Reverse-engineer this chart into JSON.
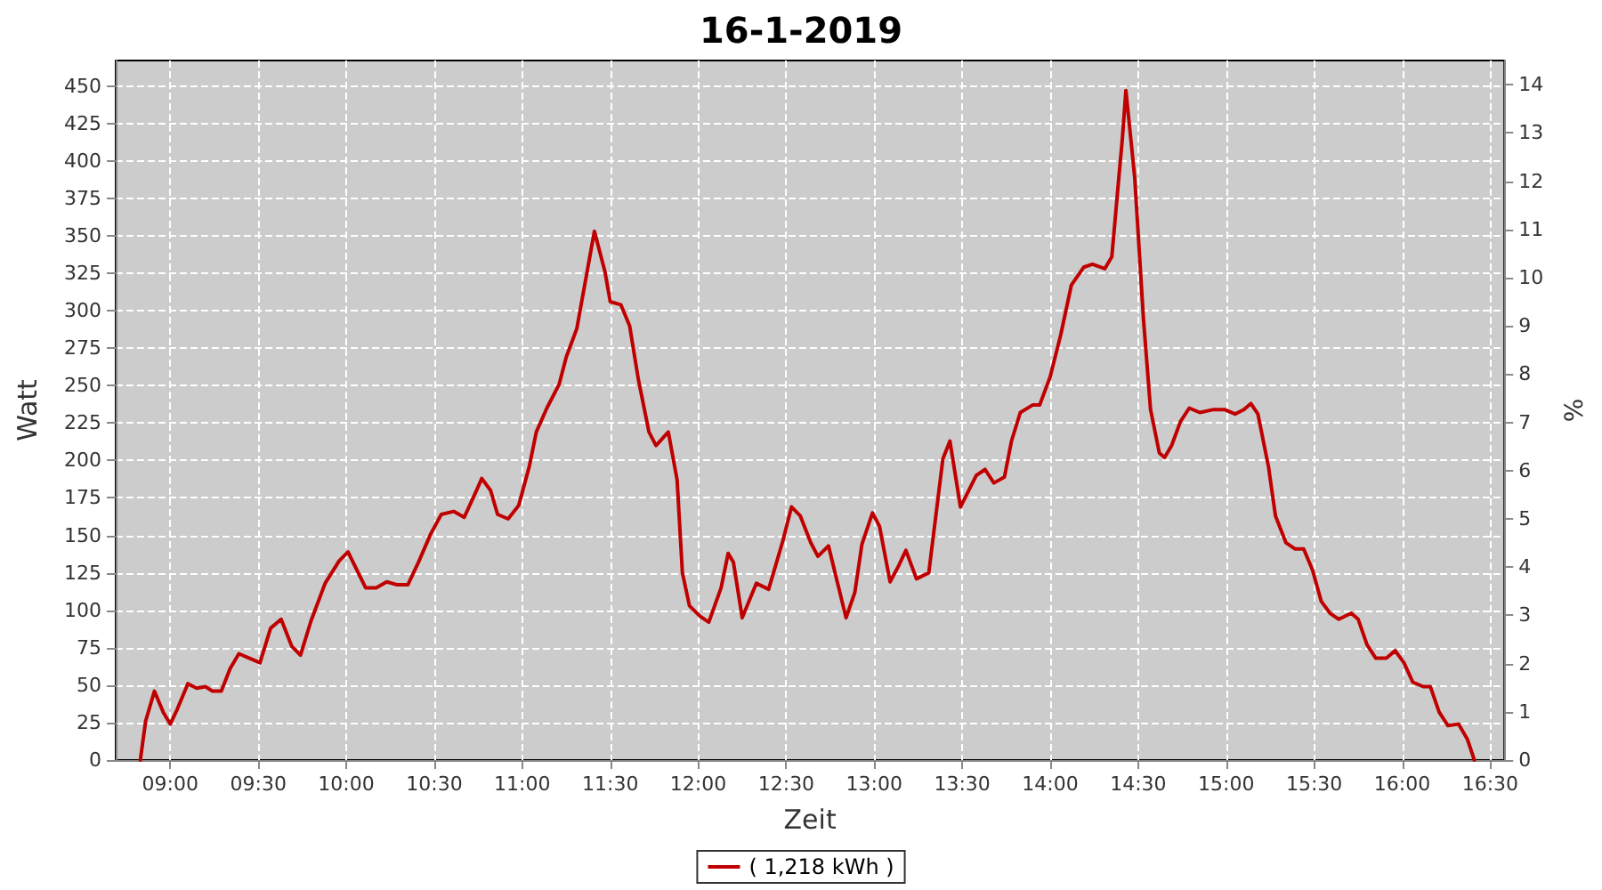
{
  "chart_data": {
    "type": "line",
    "title": "16-1-2019",
    "xlabel": "Zeit",
    "ylabel": "Watt",
    "y2label": "%",
    "xlim": [
      8.69,
      16.58
    ],
    "xticks": [
      {
        "value": 9,
        "label": "09:00"
      },
      {
        "value": 9.5,
        "label": "09:30"
      },
      {
        "value": 10,
        "label": "10:00"
      },
      {
        "value": 10.5,
        "label": "10:30"
      },
      {
        "value": 11,
        "label": "11:00"
      },
      {
        "value": 11.5,
        "label": "11:30"
      },
      {
        "value": 12,
        "label": "12:00"
      },
      {
        "value": 12.5,
        "label": "12:30"
      },
      {
        "value": 13,
        "label": "13:00"
      },
      {
        "value": 13.5,
        "label": "13:30"
      },
      {
        "value": 14,
        "label": "14:00"
      },
      {
        "value": 14.5,
        "label": "14:30"
      },
      {
        "value": 15,
        "label": "15:00"
      },
      {
        "value": 15.5,
        "label": "15:30"
      },
      {
        "value": 16,
        "label": "16:00"
      },
      {
        "value": 16.5,
        "label": "16:30"
      }
    ],
    "ylim": [
      0,
      467
    ],
    "yticks": [
      0,
      25,
      50,
      75,
      100,
      125,
      150,
      175,
      200,
      225,
      250,
      275,
      300,
      325,
      350,
      375,
      400,
      425,
      450
    ],
    "y2lim": [
      0,
      14.5
    ],
    "y2ticks": [
      0,
      1,
      2,
      3,
      4,
      5,
      6,
      7,
      8,
      9,
      10,
      11,
      12,
      13,
      14
    ],
    "grid": true,
    "legend": "bottom",
    "marker": "none",
    "line_style": "solid",
    "series": [
      {
        "name": "( 1,218 kWh )",
        "color": "#c00000",
        "x": [
          8.83,
          8.86,
          8.91,
          8.96,
          9.0,
          9.04,
          9.1,
          9.15,
          9.2,
          9.24,
          9.29,
          9.34,
          9.39,
          9.45,
          9.51,
          9.57,
          9.63,
          9.69,
          9.74,
          9.8,
          9.88,
          9.96,
          10.01,
          10.06,
          10.11,
          10.17,
          10.23,
          10.29,
          10.35,
          10.41,
          10.48,
          10.54,
          10.61,
          10.67,
          10.74,
          10.77,
          10.82,
          10.86,
          10.92,
          10.98,
          11.04,
          11.08,
          11.14,
          11.21,
          11.25,
          11.31,
          11.37,
          11.41,
          11.47,
          11.5,
          11.56,
          11.61,
          11.66,
          11.72,
          11.76,
          11.83,
          11.88,
          11.91,
          11.95,
          12.01,
          12.06,
          12.13,
          12.17,
          12.2,
          12.25,
          12.33,
          12.4,
          12.48,
          12.53,
          12.58,
          12.64,
          12.68,
          12.74,
          12.79,
          12.84,
          12.89,
          12.93,
          12.99,
          13.03,
          13.09,
          13.14,
          13.18,
          13.24,
          13.31,
          13.39,
          13.43,
          13.49,
          13.58,
          13.63,
          13.68,
          13.74,
          13.78,
          13.83,
          13.9,
          13.94,
          14.0,
          14.06,
          14.12,
          14.19,
          14.24,
          14.31,
          14.35,
          14.39,
          14.41,
          14.43,
          14.48,
          14.53,
          14.57,
          14.62,
          14.65,
          14.69,
          14.74,
          14.79,
          14.85,
          14.93,
          14.99,
          15.05,
          15.1,
          15.14,
          15.18,
          15.24,
          15.28,
          15.34,
          15.39,
          15.44,
          15.49,
          15.54,
          15.59,
          15.64,
          15.71,
          15.75,
          15.8,
          15.85,
          15.91,
          15.96,
          16.01,
          16.06,
          16.12,
          16.16,
          16.21,
          16.26,
          16.32,
          16.37,
          16.41
        ],
        "values": [
          0,
          26,
          46,
          32,
          24,
          34,
          51,
          48,
          49,
          46,
          46,
          61,
          71,
          68,
          65,
          88,
          94,
          76,
          70,
          93,
          118,
          133,
          139,
          127,
          115,
          115,
          119,
          117,
          117,
          132,
          151,
          164,
          166,
          162,
          180,
          188,
          180,
          164,
          161,
          170,
          196,
          219,
          235,
          251,
          269,
          288,
          327,
          353,
          326,
          306,
          304,
          290,
          254,
          219,
          210,
          219,
          187,
          125,
          103,
          96,
          92,
          115,
          138,
          132,
          95,
          118,
          114,
          146,
          169,
          163,
          145,
          136,
          143,
          119,
          95,
          112,
          144,
          165,
          156,
          119,
          130,
          140,
          121,
          125,
          201,
          213,
          169,
          190,
          194,
          185,
          189,
          213,
          232,
          237,
          237,
          256,
          284,
          317,
          329,
          331,
          328,
          336,
          389,
          415,
          447,
          389,
          294,
          234,
          205,
          202,
          210,
          226,
          235,
          232,
          234,
          234,
          231,
          234,
          238,
          231,
          196,
          163,
          145,
          141,
          141,
          127,
          106,
          98,
          94,
          98,
          94,
          77,
          68,
          68,
          73,
          65,
          52,
          49,
          49,
          32,
          23,
          24,
          14,
          0
        ]
      }
    ]
  }
}
